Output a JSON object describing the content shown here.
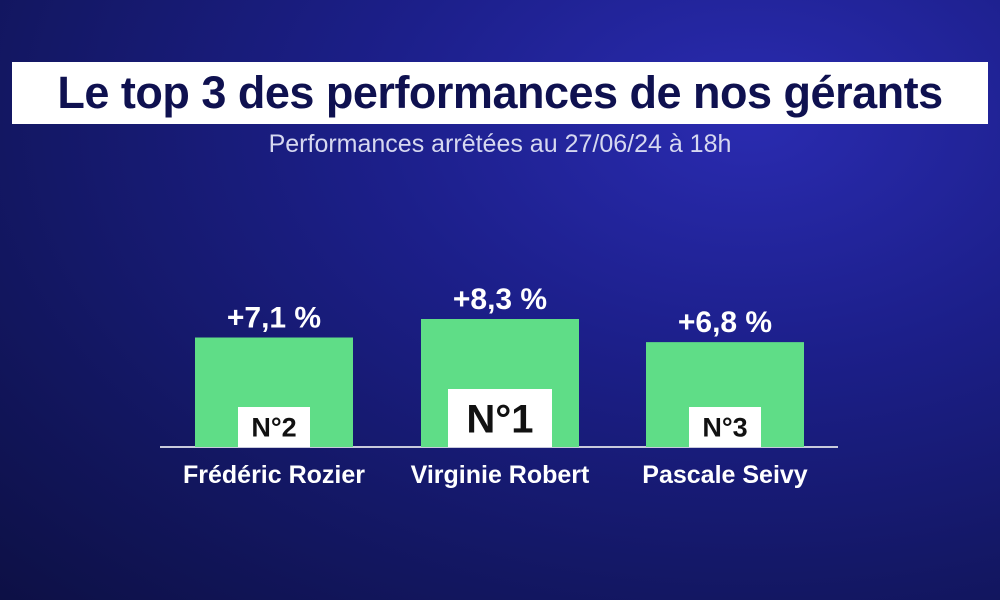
{
  "header": {
    "title": "Le top 3 des performances de nos gérants",
    "subtitle": "Performances arrêtées au 27/06/24 à 18h"
  },
  "colors": {
    "bar": "#5fdd87",
    "baseline": "#c8cadc",
    "rank_box": "#ffffff"
  },
  "chart_data": {
    "type": "bar",
    "categories": [
      "Frédéric Rozier",
      "Virginie Robert",
      "Pascale Seivy"
    ],
    "values": [
      7.1,
      8.3,
      6.8
    ],
    "value_labels": [
      "+7,1 %",
      "+8,3 %",
      "+6,8 %"
    ],
    "ranks": [
      "N°2",
      "N°1",
      "N°3"
    ],
    "title": "Le top 3 des performances de nos gérants",
    "subtitle": "Performances arrêtées au 27/06/24 à 18h",
    "xlabel": "",
    "ylabel": "",
    "grid": false
  }
}
